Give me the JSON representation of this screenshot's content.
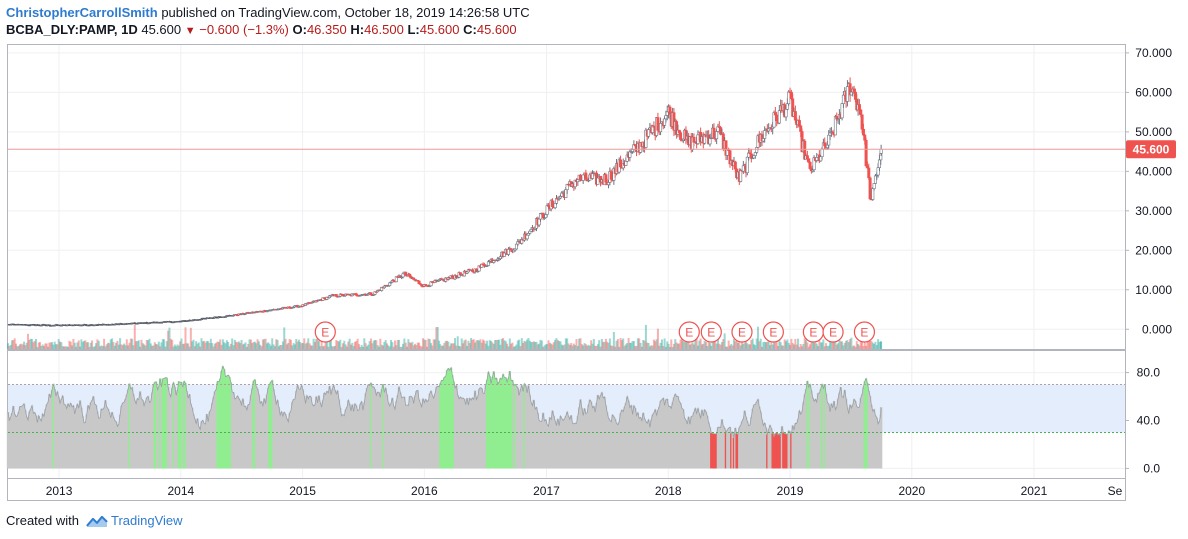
{
  "header": {
    "author": "ChristopherCarrollSmith",
    "published_text": "published on TradingView.com, October 18, 2019 14:26:58 UTC"
  },
  "symbol_line": {
    "symbol": "BCBA_DLY:PAMP, 1D",
    "last": "45.600",
    "change": "−0.600 (−1.3%)",
    "o_label": "O:",
    "o_value": "46.350",
    "h_label": "H:",
    "h_value": "46.500",
    "l_label": "L:",
    "l_value": "45.600",
    "c_label": "C:",
    "c_value": "45.600"
  },
  "footer": {
    "created_with": "Created with",
    "brand": "TradingView"
  },
  "colors": {
    "up": "#26a69a",
    "down": "#ef5350",
    "price_line": "#ef9a9a",
    "rsi_band": "#e3edfb",
    "rsi_fill": "#c8c8c8",
    "rsi_overbought": "#90ee90",
    "rsi_oversold": "#ef5350",
    "brand": "#2e7bcf"
  },
  "chart_data": [
    {
      "type": "line",
      "title": "",
      "series": [
        {
          "x": [
            "2012-08",
            "2013-01",
            "2013-06",
            "2014-01",
            "2014-06",
            "2015-01",
            "2015-04",
            "2015-08",
            "2015-11",
            "2016-01",
            "2016-06",
            "2016-10",
            "2017-01",
            "2017-04",
            "2017-07",
            "2017-10",
            "2018-01",
            "2018-03",
            "2018-06",
            "2018-08",
            "2018-10",
            "2019-01",
            "2019-03",
            "2019-05",
            "2019-07",
            "2019-08",
            "2019-09",
            "2019-10"
          ],
          "values": [
            1.2,
            1.0,
            1.2,
            2.0,
            3.5,
            6.0,
            8.5,
            9.0,
            14.0,
            11.0,
            15.0,
            21.0,
            30.0,
            38.0,
            38.0,
            46.0,
            55.0,
            47.0,
            50.0,
            38.0,
            48.0,
            58.0,
            40.0,
            48.0,
            62.0,
            55.0,
            32.0,
            45.6
          ]
        }
      ],
      "y_ticks": [
        "70.000",
        "60.000",
        "50.000",
        "40.000",
        "30.000",
        "20.000",
        "10.000",
        "0.000"
      ],
      "ylim": [
        -5,
        72
      ],
      "last_price_label": "45.600",
      "last_price": 45.6,
      "earnings_markers": {
        "label": "E",
        "dates": [
          "2015-03-10",
          "2018-03-05",
          "2018-05-10",
          "2018-08-10",
          "2018-11-12",
          "2019-03-12",
          "2019-05-10",
          "2019-08-12"
        ]
      }
    },
    {
      "type": "area",
      "y_ticks": [
        "80.0",
        "40.0",
        "0.0"
      ],
      "ylim": [
        -8,
        98
      ],
      "upper_band": 70,
      "lower_band": 30
    }
  ],
  "x_axis": {
    "ticks": [
      "2013",
      "2014",
      "2015",
      "2016",
      "2017",
      "2018",
      "2019",
      "2020",
      "2021",
      "Se"
    ]
  }
}
